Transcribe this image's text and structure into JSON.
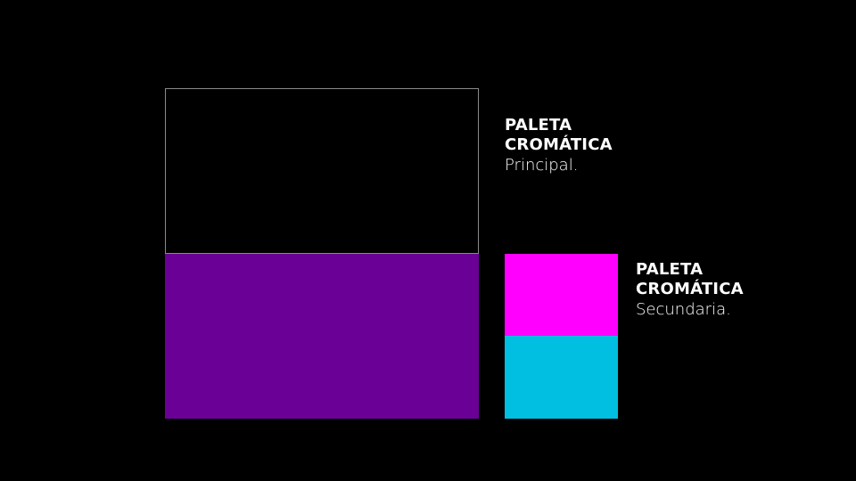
{
  "primary": {
    "title": "PALETA CROMÁTICA",
    "subtitle": "Principal."
  },
  "secondary": {
    "title": "PALETA CROMÁTICA",
    "subtitle": "Secundaria."
  }
}
